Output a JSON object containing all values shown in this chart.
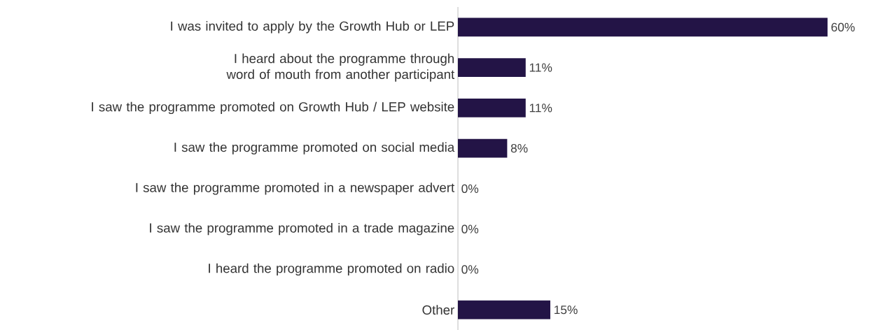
{
  "chart_data": {
    "type": "bar",
    "orientation": "horizontal",
    "categories": [
      "I was invited to apply by the Growth Hub or LEP",
      "I heard about the programme through word of mouth from another participant",
      "I saw the programme promoted on Growth Hub / LEP website",
      "I saw the programme promoted on social media",
      "I saw the programme promoted in a newspaper advert",
      "I saw the programme promoted in a trade magazine",
      "I heard the programme promoted on radio",
      "Other"
    ],
    "values": [
      60,
      11,
      11,
      8,
      0,
      0,
      0,
      15
    ],
    "value_labels": [
      "60%",
      "11%",
      "11%",
      "8%",
      "0%",
      "0%",
      "0%",
      "15%"
    ],
    "color": "#231446"
  }
}
